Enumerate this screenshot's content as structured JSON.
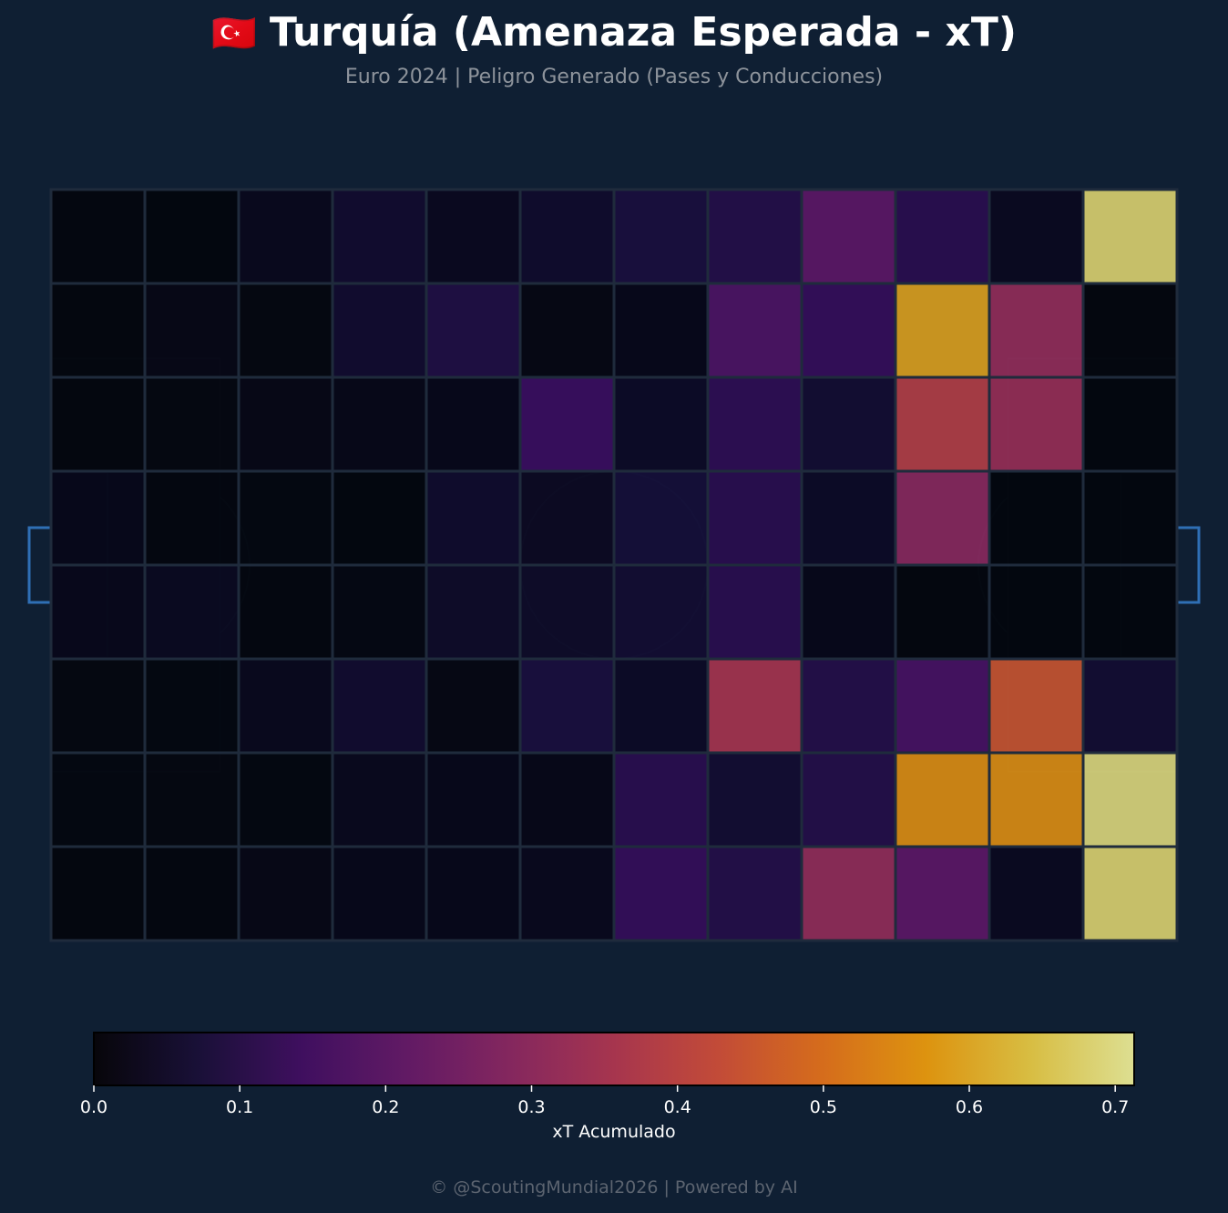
{
  "header": {
    "flag_label": "🇹🇷",
    "title": "Turquía (Amenaza Esperada - xT)",
    "subtitle": "Euro 2024 | Peligro Generado (Pases y Conducciones)"
  },
  "footer": {
    "credit": "© @ScoutingMundial2026 | Powered by AI"
  },
  "colors": {
    "background": "#0f1f33",
    "pitch_lines": "#1e3350",
    "goal_lines": "#2f6fb5",
    "grid_border": "#1f2b3c"
  },
  "chart_data": {
    "type": "heatmap",
    "title": "Turquía (Amenaza Esperada - xT)",
    "subtitle": "Euro 2024 | Peligro Generado (Pases y Conducciones)",
    "colormap": "inferno",
    "colorbar": {
      "label": "xT Acumulado",
      "range": [
        0.0,
        0.713
      ],
      "ticks": [
        0.0,
        0.1,
        0.2,
        0.3,
        0.4,
        0.5,
        0.6,
        0.7
      ],
      "tick_labels": [
        "0.0",
        "0.1",
        "0.2",
        "0.3",
        "0.4",
        "0.5",
        "0.6",
        "0.7"
      ]
    },
    "grid": {
      "columns": 12,
      "rows": 8
    },
    "values": [
      [
        0.003,
        0.001,
        0.025,
        0.055,
        0.028,
        0.05,
        0.08,
        0.1,
        0.21,
        0.11,
        0.03,
        0.68
      ],
      [
        0.002,
        0.012,
        0.005,
        0.055,
        0.09,
        0.01,
        0.02,
        0.18,
        0.13,
        0.59,
        0.32,
        0.002
      ],
      [
        0.002,
        0.005,
        0.012,
        0.018,
        0.02,
        0.14,
        0.04,
        0.12,
        0.06,
        0.39,
        0.33,
        0.001
      ],
      [
        0.02,
        0.003,
        0.004,
        0.001,
        0.05,
        0.035,
        0.07,
        0.11,
        0.04,
        0.3,
        0.001,
        0.001
      ],
      [
        0.022,
        0.03,
        0.003,
        0.008,
        0.045,
        0.045,
        0.06,
        0.11,
        0.02,
        0.002,
        0.001,
        0.001
      ],
      [
        0.005,
        0.004,
        0.025,
        0.055,
        0.01,
        0.08,
        0.04,
        0.36,
        0.1,
        0.17,
        0.45,
        0.06
      ],
      [
        0.004,
        0.005,
        0.004,
        0.025,
        0.02,
        0.018,
        0.11,
        0.06,
        0.1,
        0.56,
        0.56,
        0.69
      ],
      [
        0.002,
        0.003,
        0.012,
        0.02,
        0.02,
        0.025,
        0.13,
        0.1,
        0.32,
        0.21,
        0.03,
        0.68
      ]
    ]
  }
}
